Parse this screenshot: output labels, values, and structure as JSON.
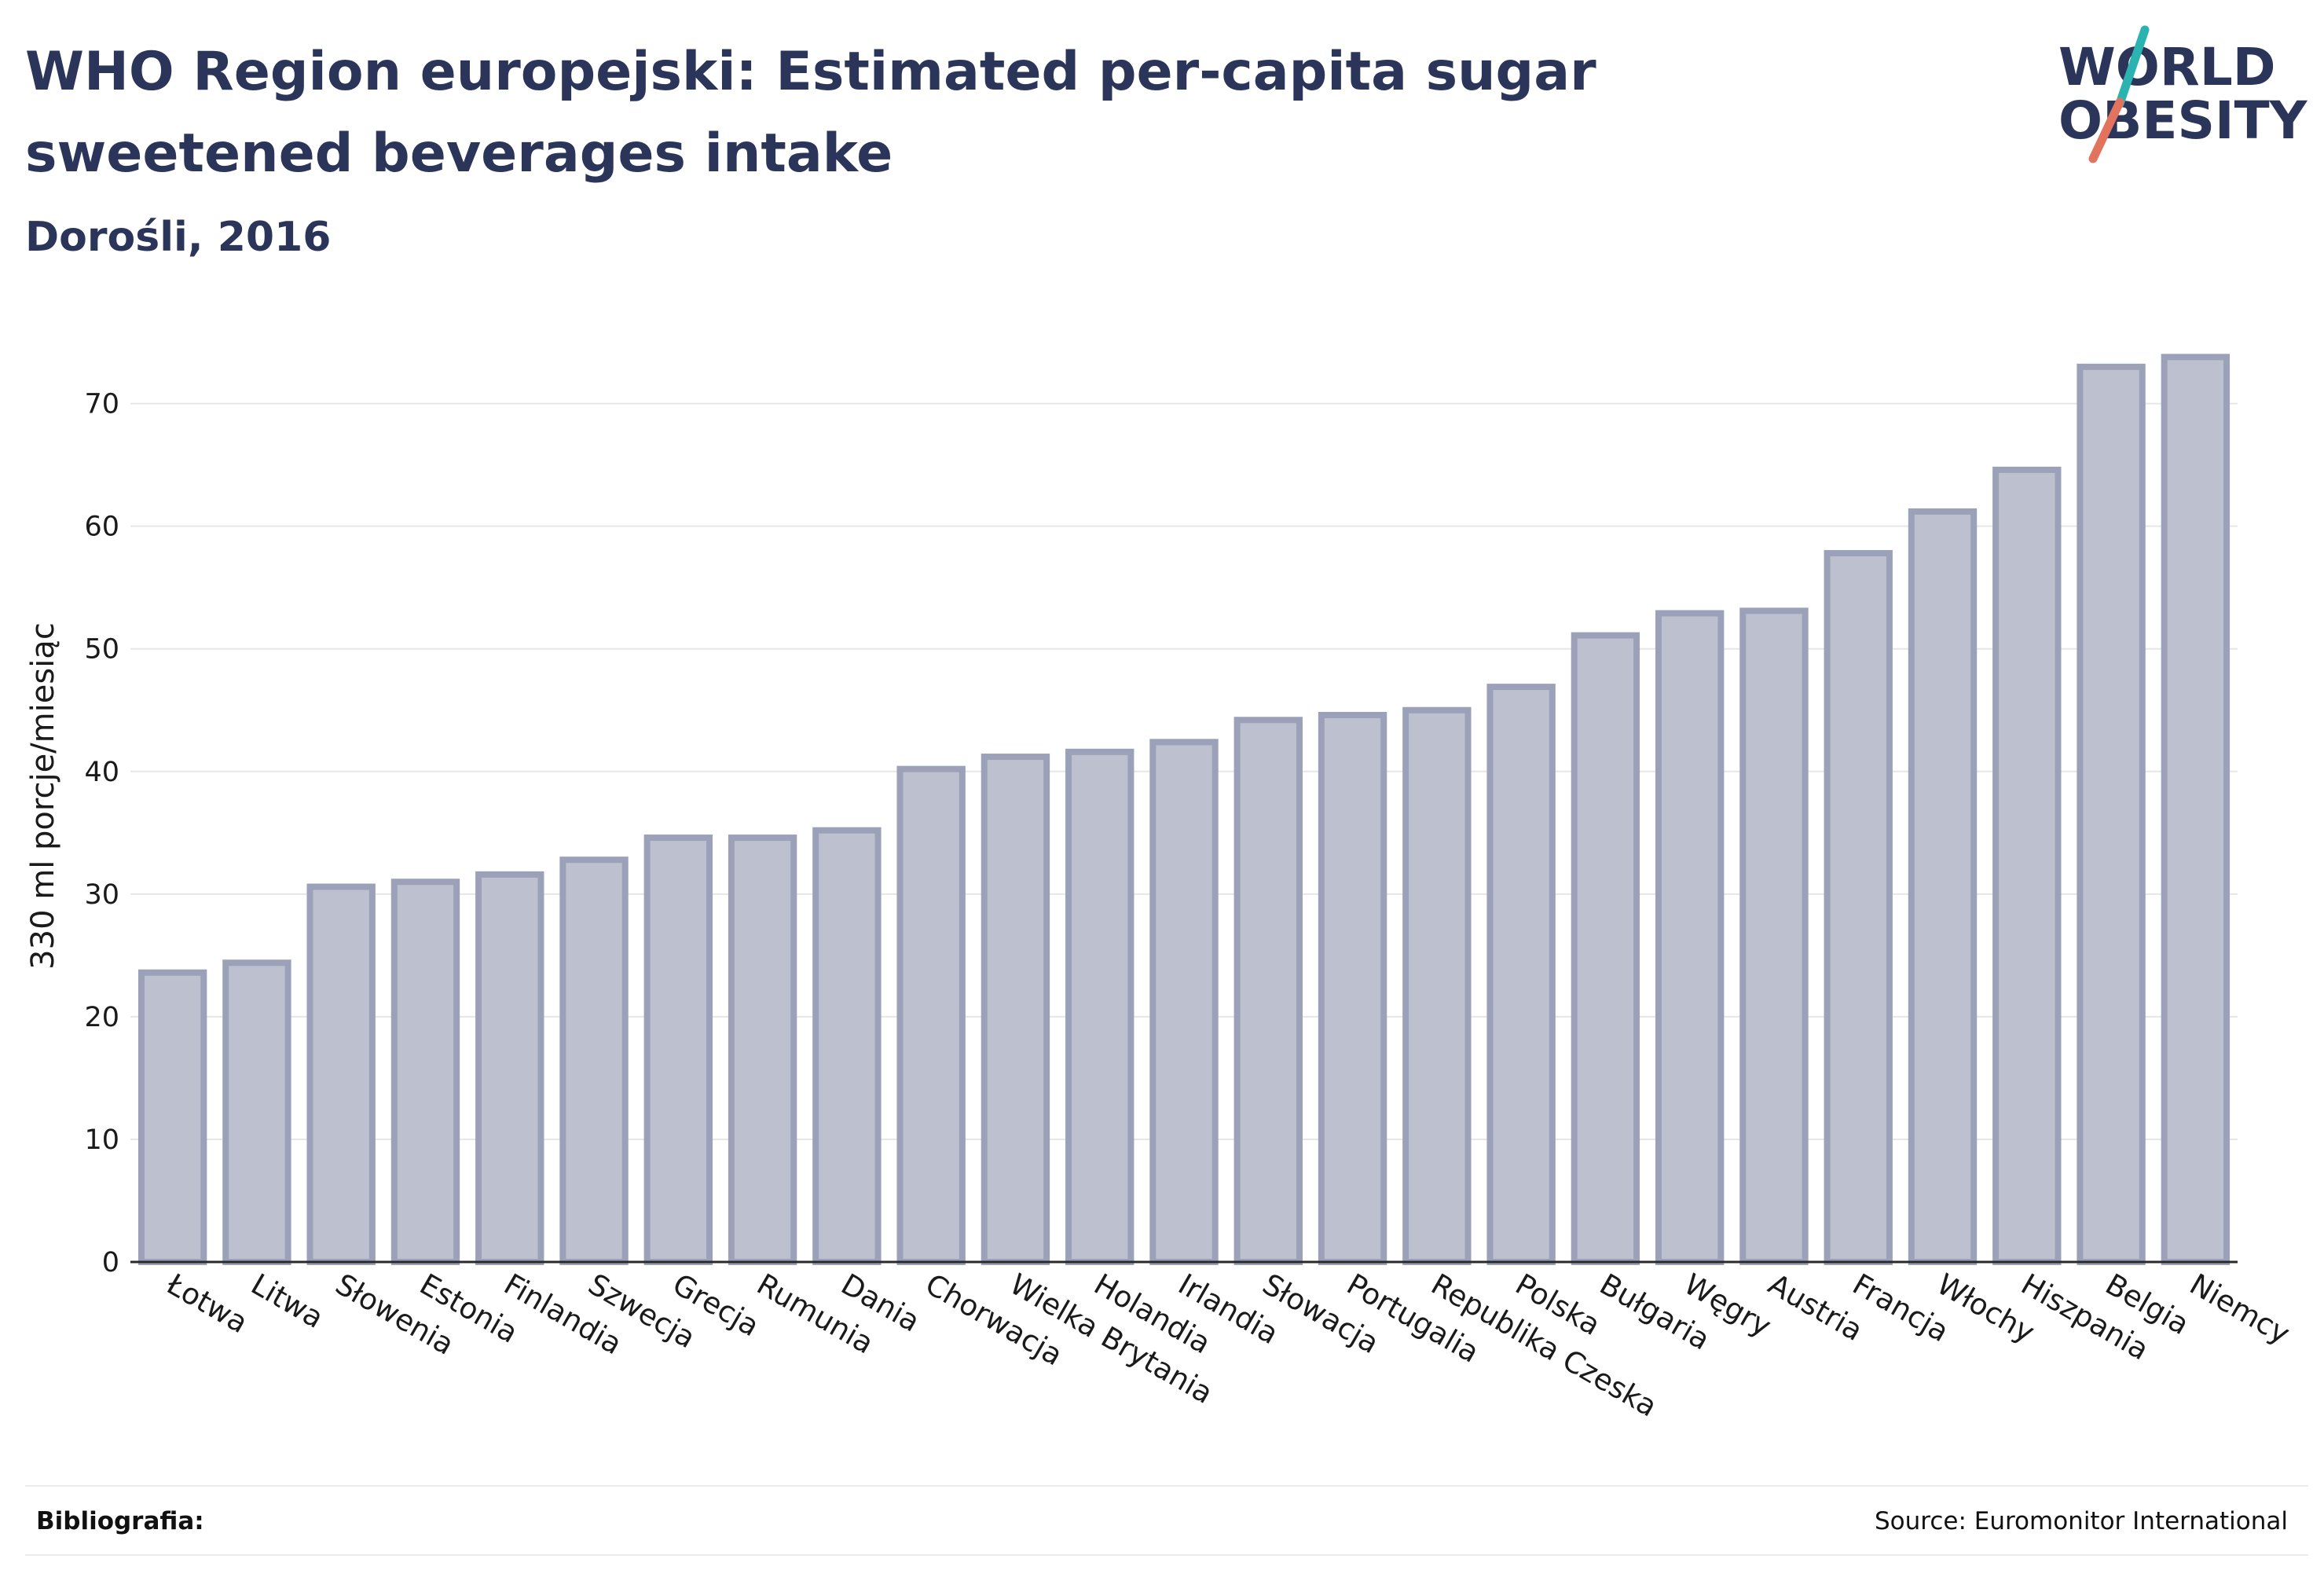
{
  "header": {
    "title": "WHO Region europejski: Estimated per-capita sugar sweetened beverages intake",
    "subtitle": "Dorośli, 2016"
  },
  "logo": {
    "line1": "WORLD",
    "line2": "OBESITY",
    "accent_colors": [
      "#2bb3b1",
      "#e2735e"
    ]
  },
  "footer": {
    "left": "Bibliografia:",
    "right": "Source: Euromonitor International"
  },
  "colors": {
    "bar_fill": "#bcc0cf",
    "bar_stroke": "#9ba1b8",
    "text": "#2b355a"
  },
  "chart_data": {
    "type": "bar",
    "ylabel": "330 ml porcje/miesiąc",
    "ylim": [
      0,
      76
    ],
    "yticks": [
      0,
      10,
      20,
      30,
      40,
      50,
      60,
      70
    ],
    "grid": true,
    "categories": [
      "Łotwa",
      "Litwa",
      "Słowenia",
      "Estonia",
      "Finlandia",
      "Szwecja",
      "Grecja",
      "Rumunia",
      "Dania",
      "Chorwacja",
      "Wielka Brytania",
      "Holandia",
      "Irlandia",
      "Słowacja",
      "Portugalia",
      "Republika Czeska",
      "Polska",
      "Bułgaria",
      "Węgry",
      "Austria",
      "Francja",
      "Włochy",
      "Hiszpania",
      "Belgia",
      "Niemcy"
    ],
    "values": [
      23.6,
      24.4,
      30.6,
      31.0,
      31.6,
      32.8,
      34.6,
      34.6,
      35.2,
      40.2,
      41.2,
      41.6,
      42.4,
      44.2,
      44.6,
      45.0,
      46.9,
      51.1,
      52.9,
      53.1,
      57.8,
      61.2,
      64.6,
      73.0,
      73.8
    ]
  }
}
